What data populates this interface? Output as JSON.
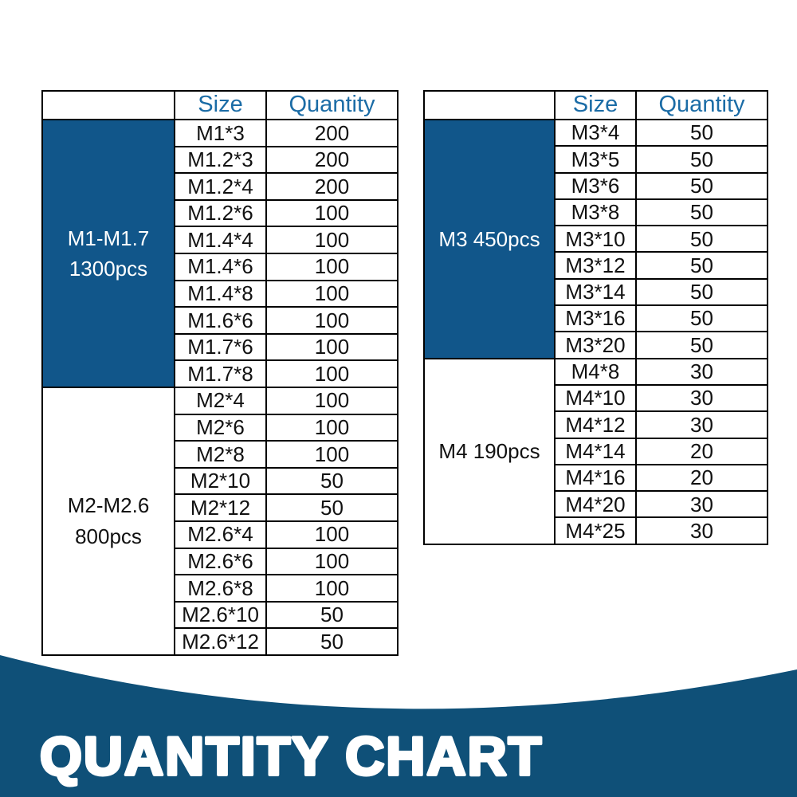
{
  "colors": {
    "accent_blue": "#11568A",
    "banner_blue": "#0F5078",
    "header_text_blue": "#1B6CA6",
    "border_black": "#000000",
    "text_black": "#111111",
    "white": "#FFFFFF"
  },
  "banner": {
    "title": "QUANTITY CHART"
  },
  "chart_data": [
    {
      "type": "table",
      "headers": {
        "group": "",
        "size": "Size",
        "quantity": "Quantity"
      },
      "groups": [
        {
          "label": "M1-M1.7 1300pcs",
          "label_lines": [
            "M1-M1.7",
            "1300pcs"
          ],
          "total": 1300,
          "highlight": true,
          "rows": [
            [
              "M1*3",
              "200"
            ],
            [
              "M1.2*3",
              "200"
            ],
            [
              "M1.2*4",
              "200"
            ],
            [
              "M1.2*6",
              "100"
            ],
            [
              "M1.4*4",
              "100"
            ],
            [
              "M1.4*6",
              "100"
            ],
            [
              "M1.4*8",
              "100"
            ],
            [
              "M1.6*6",
              "100"
            ],
            [
              "M1.7*6",
              "100"
            ],
            [
              "M1.7*8",
              "100"
            ]
          ]
        },
        {
          "label": "M2-M2.6 800pcs",
          "label_lines": [
            "M2-M2.6",
            "800pcs"
          ],
          "total": 800,
          "highlight": false,
          "rows": [
            [
              "M2*4",
              "100"
            ],
            [
              "M2*6",
              "100"
            ],
            [
              "M2*8",
              "100"
            ],
            [
              "M2*10",
              "50"
            ],
            [
              "M2*12",
              "50"
            ],
            [
              "M2.6*4",
              "100"
            ],
            [
              "M2.6*6",
              "100"
            ],
            [
              "M2.6*8",
              "100"
            ],
            [
              "M2.6*10",
              "50"
            ],
            [
              "M2.6*12",
              "50"
            ]
          ]
        }
      ]
    },
    {
      "type": "table",
      "headers": {
        "group": "",
        "size": "Size",
        "quantity": "Quantity"
      },
      "groups": [
        {
          "label": "M3 450pcs",
          "label_lines": [
            "M3 450pcs"
          ],
          "total": 450,
          "highlight": true,
          "rows": [
            [
              "M3*4",
              "50"
            ],
            [
              "M3*5",
              "50"
            ],
            [
              "M3*6",
              "50"
            ],
            [
              "M3*8",
              "50"
            ],
            [
              "M3*10",
              "50"
            ],
            [
              "M3*12",
              "50"
            ],
            [
              "M3*14",
              "50"
            ],
            [
              "M3*16",
              "50"
            ],
            [
              "M3*20",
              "50"
            ]
          ]
        },
        {
          "label": "M4 190pcs",
          "label_lines": [
            "M4 190pcs"
          ],
          "total": 190,
          "highlight": false,
          "rows": [
            [
              "M4*8",
              "30"
            ],
            [
              "M4*10",
              "30"
            ],
            [
              "M4*12",
              "30"
            ],
            [
              "M4*14",
              "20"
            ],
            [
              "M4*16",
              "20"
            ],
            [
              "M4*20",
              "30"
            ],
            [
              "M4*25",
              "30"
            ]
          ]
        }
      ]
    }
  ]
}
